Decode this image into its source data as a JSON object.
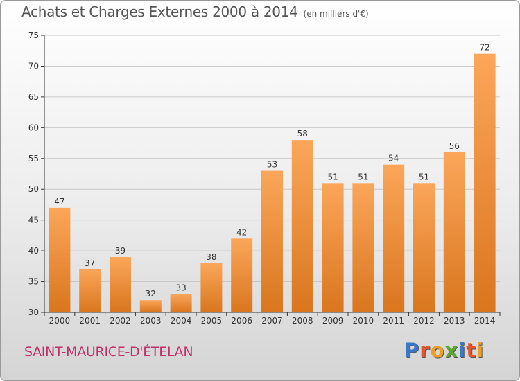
{
  "header": {
    "title": "Achats et Charges Externes 2000 à 2014",
    "subtitle": "(en milliers d'€)"
  },
  "commune": "SAINT-MAURICE-D'ÉTELAN",
  "logo": {
    "text": "Proxiti",
    "letter_colors": [
      "#3a78c8",
      "#e4572e",
      "#f0a020",
      "#5aa832",
      "#3a78c8",
      "#e4572e",
      "#f0a020"
    ]
  },
  "colors": {
    "bar_light": "#fba65a",
    "bar_dark": "#d9761e",
    "grid": "#c8c8c8",
    "axis": "#333333"
  },
  "chart_data": {
    "type": "bar",
    "title": "Achats et Charges Externes 2000 à 2014",
    "subtitle": "(en milliers d'€)",
    "categories": [
      "2000",
      "2001",
      "2002",
      "2003",
      "2004",
      "2005",
      "2006",
      "2007",
      "2008",
      "2009",
      "2010",
      "2011",
      "2012",
      "2013",
      "2014"
    ],
    "values": [
      47,
      37,
      39,
      32,
      33,
      38,
      42,
      53,
      58,
      51,
      51,
      54,
      51,
      56,
      72
    ],
    "data_labels": [
      "47",
      "37",
      "39",
      "32",
      "33",
      "38",
      "42",
      "53",
      "58",
      "51",
      "51",
      "54",
      "51",
      "56",
      "72"
    ],
    "ylim": [
      30,
      75
    ],
    "yticks": [
      30,
      35,
      40,
      45,
      50,
      55,
      60,
      65,
      70,
      75
    ],
    "ytick_labels": [
      "30",
      "35",
      "40",
      "45",
      "50",
      "55",
      "60",
      "65",
      "70",
      "75"
    ],
    "grid": true,
    "xlabel": "",
    "ylabel": ""
  }
}
